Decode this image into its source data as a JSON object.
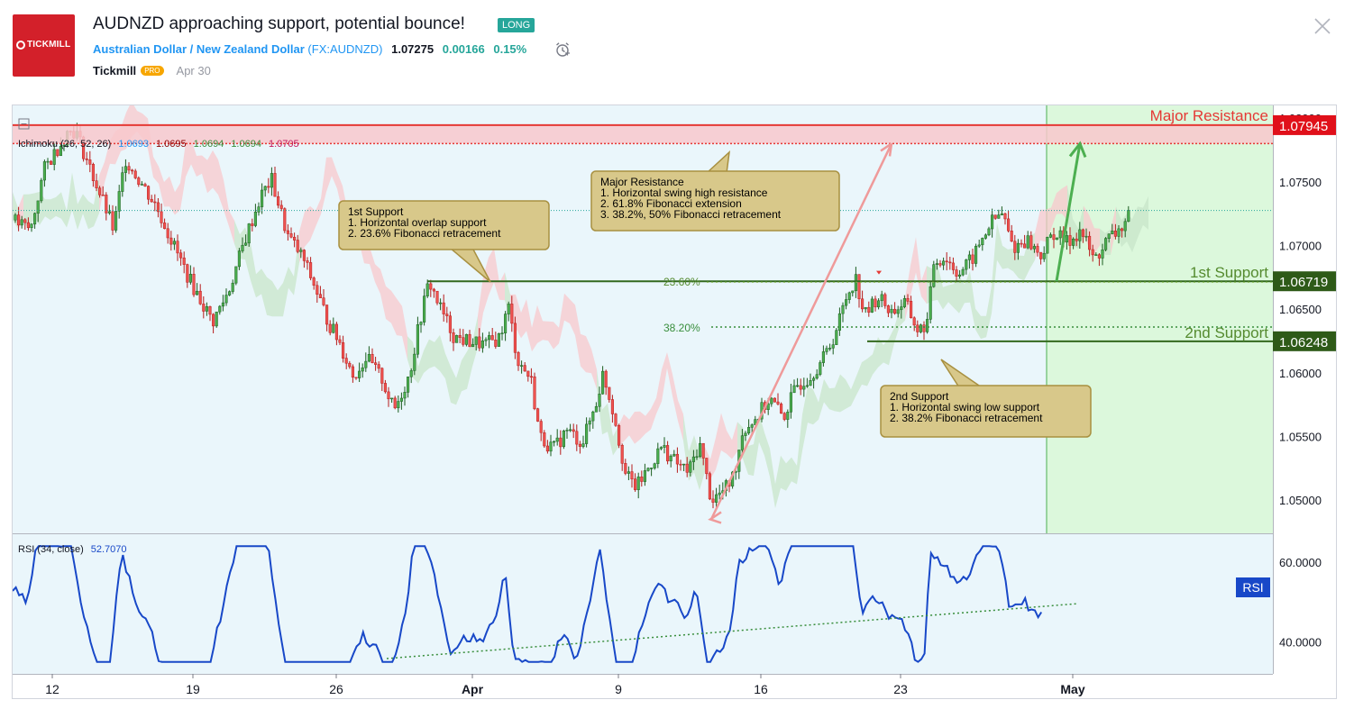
{
  "header": {
    "logo_text": "TICKMILL",
    "title": "AUDNZD approaching support, potential bounce!",
    "badge": "LONG",
    "symbol_name": "Australian Dollar / New Zealand Dollar",
    "symbol_ticker": "FX:AUDNZD",
    "price": "1.07275",
    "change": "0.00166",
    "change_pct": "0.15%",
    "author": "Tickmill",
    "author_badge": "PRO",
    "date": "Apr 30"
  },
  "chart_data": {
    "type": "candlestick",
    "indicator": {
      "name": "Ichimoku",
      "params": "(26, 52, 26)",
      "values": [
        "1.0693",
        "1.0695",
        "1.0694",
        "1.0694",
        "1.0705"
      ],
      "colors": [
        "#2196f3",
        "#8b0000",
        "#388e3c",
        "#388e3c",
        "#c2185b"
      ]
    },
    "y_axis": {
      "ticks": [
        "1.08000",
        "1.07500",
        "1.07000",
        "1.06500",
        "1.06000",
        "1.05500",
        "1.05000"
      ],
      "range": [
        1.0474,
        1.081
      ]
    },
    "x_axis": {
      "ticks": [
        "12",
        "19",
        "26",
        "Apr",
        "9",
        "16",
        "23",
        "May"
      ]
    },
    "levels": [
      {
        "name": "Major Resistance",
        "price": "1.07945",
        "color": "#e53935"
      },
      {
        "name": "1st Support",
        "price": "1.06719",
        "color": "#558b2f"
      },
      {
        "name": "2nd Support",
        "price": "1.06248",
        "color": "#558b2f"
      }
    ],
    "fib_labels": [
      "23.60%",
      "38.20%"
    ],
    "annotations": {
      "first_support": {
        "title": "1st Support",
        "lines": [
          "1. Horizontal overlap support",
          "2. 23.6% Fibonacci retracement"
        ]
      },
      "major_resistance": {
        "title": "Major Resistance",
        "lines": [
          "1. Horizontal swing high resistance",
          "2. 61.8% Fibonacci extension",
          "3. 38.2%, 50% Fibonacci retracement"
        ]
      },
      "second_support": {
        "title": "2nd Support",
        "lines": [
          "1. Horizontal swing low support",
          "2. 38.2% Fibonacci retracement"
        ]
      }
    },
    "rsi": {
      "label": "RSI (34, close)",
      "value": "52.7070",
      "badge": "RSI",
      "ticks": [
        "60.0000",
        "40.0000"
      ],
      "range": [
        32,
        67
      ]
    },
    "colors": {
      "up": "#26a69a",
      "down": "#ef5350",
      "candle_body_up": "#1b5e20",
      "candle_body_down": "#b71c1c",
      "rsi_line": "#1848c8",
      "zone_green": "#dcf8dc"
    }
  }
}
